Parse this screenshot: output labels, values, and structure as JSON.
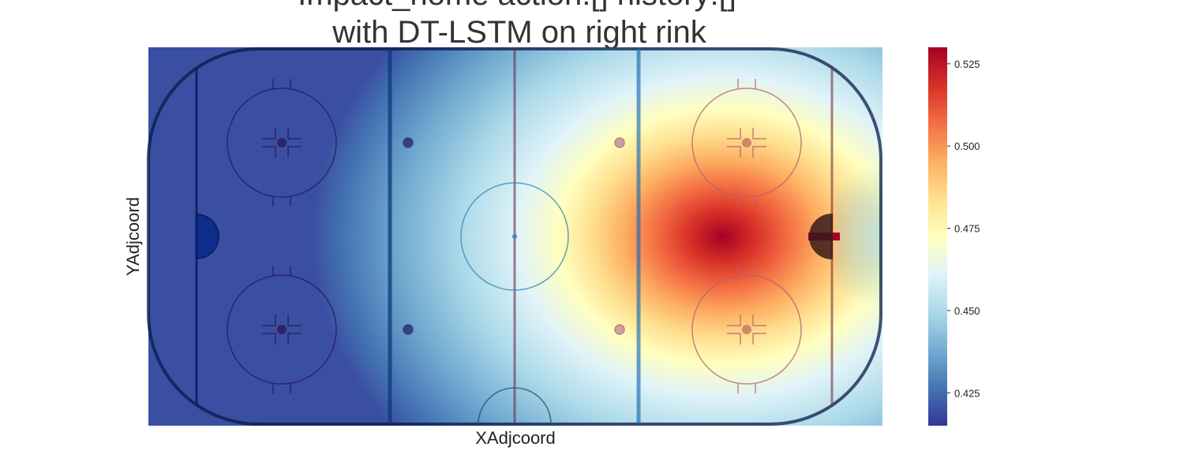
{
  "chart_data": {
    "type": "heatmap",
    "title_lines": [
      "Impact_home action:[] history:[]",
      "with DT-LSTM on right rink"
    ],
    "xlabel": "XAdjcoord",
    "ylabel": "YAdjcoord",
    "colormap": "RdYlBu_r",
    "colorbar": {
      "vmin": 0.415,
      "vmax": 0.53,
      "ticks": [
        0.425,
        0.45,
        0.475,
        0.5,
        0.525
      ],
      "tick_labels": [
        "0.425",
        "0.450",
        "0.475",
        "0.500",
        "0.525"
      ]
    },
    "peak": {
      "x": 89,
      "y": 0,
      "value": 0.53
    },
    "grid": false
  }
}
